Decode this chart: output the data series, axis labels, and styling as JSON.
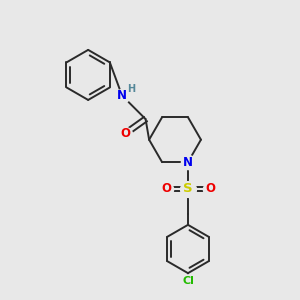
{
  "background_color": "#e8e8e8",
  "bond_color": "#2a2a2a",
  "atom_colors": {
    "N": "#0000ee",
    "O": "#ee0000",
    "S": "#cccc00",
    "Cl": "#22bb00",
    "H": "#558899",
    "C": "#2a2a2a"
  },
  "font_size_atoms": 8.5,
  "lw": 1.4
}
